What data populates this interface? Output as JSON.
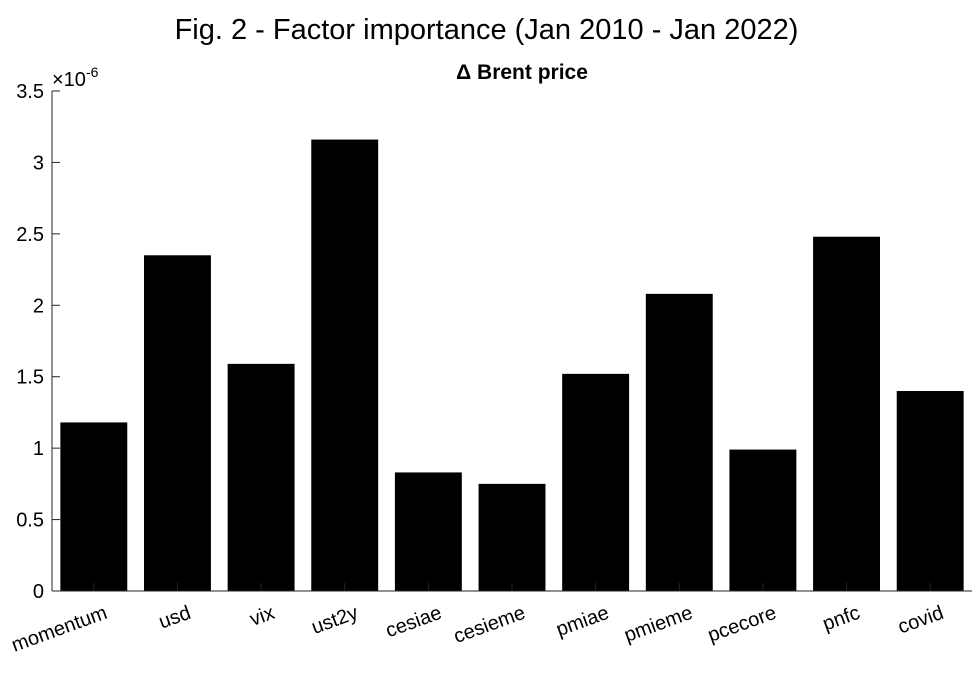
{
  "figure_title": "Fig. 2 - Factor importance (Jan 2010 - Jan 2022)",
  "chart_data": {
    "type": "bar",
    "title": "Δ Brent price",
    "xlabel": "",
    "ylabel": "",
    "exponent_label": "×10",
    "exponent_power": "-6",
    "categories": [
      "momentum",
      "usd",
      "vix",
      "ust2y",
      "cesiae",
      "cesieme",
      "pmiae",
      "pmieme",
      "pcecore",
      "pnfc",
      "covid"
    ],
    "values": [
      1.18,
      2.35,
      1.59,
      3.16,
      0.83,
      0.75,
      1.52,
      2.08,
      0.99,
      2.48,
      1.4
    ],
    "ylim": [
      0,
      3.5
    ],
    "yticks": [
      "0",
      "0.5",
      "1",
      "1.5",
      "2",
      "2.5",
      "3",
      "3.5"
    ],
    "bar_color": "#000000",
    "grid": false
  }
}
